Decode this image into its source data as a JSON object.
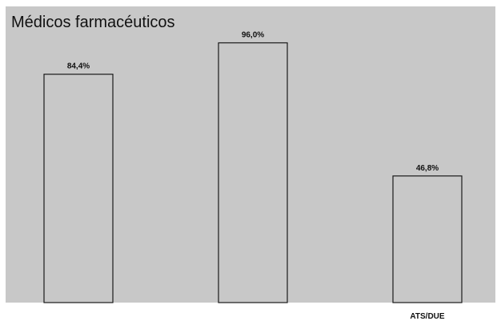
{
  "chart_data": {
    "type": "bar",
    "title": "Médicos farmacéuticos",
    "categories": [
      "",
      "",
      "ATS/DUE"
    ],
    "values": [
      84.4,
      96.0,
      46.8
    ],
    "value_labels": [
      "84,4%",
      "96,0%",
      "46,8%"
    ],
    "ylim": [
      0,
      100
    ],
    "grid": false,
    "legend": "none",
    "colors": {
      "plot_background": "#c8c8c8",
      "bar_fill": "#c8c8c8",
      "bar_stroke": "#1a1a1a"
    }
  }
}
